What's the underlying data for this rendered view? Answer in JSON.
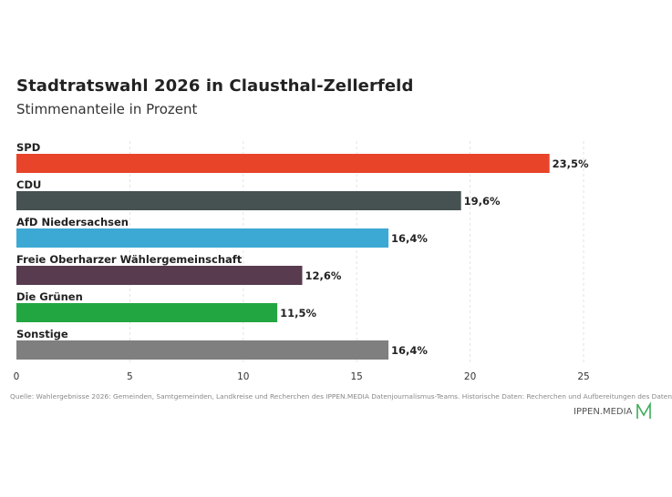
{
  "header": {
    "title": "Stadtratswahl 2026 in Clausthal-Zellerfeld",
    "subtitle": "Stimmenanteile in Prozent"
  },
  "chart_data": {
    "type": "bar",
    "orientation": "horizontal",
    "title": "Stadtratswahl 2026 in Clausthal-Zellerfeld",
    "subtitle": "Stimmenanteile in Prozent",
    "categories": [
      "SPD",
      "CDU",
      "AfD Niedersachsen",
      "Freie Oberharzer Wählergemeinschaft",
      "Die Grünen",
      "Sonstige"
    ],
    "values": [
      23.5,
      19.6,
      16.4,
      12.6,
      11.5,
      16.4
    ],
    "value_labels": [
      "23,5%",
      "19,6%",
      "16,4%",
      "12,6%",
      "11,5%",
      "16,4%"
    ],
    "colors": [
      "#e8442a",
      "#465151",
      "#3ca9d4",
      "#583b4f",
      "#22a642",
      "#7f7f7f"
    ],
    "xticks": [
      "0",
      "5",
      "10",
      "15",
      "20",
      "25"
    ],
    "xlim": [
      0,
      25
    ],
    "grid": true
  },
  "footer": {
    "source": "Quelle: Wahlergebnisse 2026: Gemeinden, Samtgemeinden, Landkreise und Recherchen des IPPEN.MEDIA Datenjournalismus-Teams. Historische Daten: Recherchen und Aufbereitungen des Daten",
    "brand": "IPPEN.MEDIA",
    "brand_color": "#3cae5a"
  }
}
